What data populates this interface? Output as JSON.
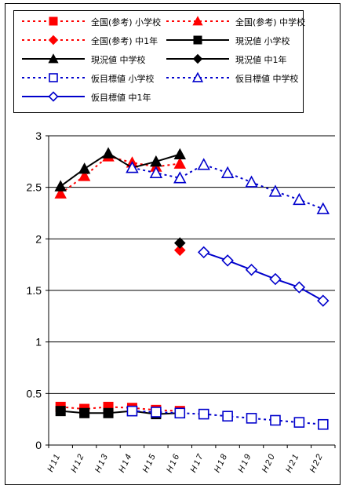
{
  "chart_data": {
    "type": "line",
    "categories": [
      "H11",
      "H12",
      "H13",
      "H14",
      "H15",
      "H16",
      "H17",
      "H18",
      "H19",
      "H20",
      "H21",
      "H22"
    ],
    "ylim": [
      0,
      3
    ],
    "yticks": [
      "0",
      "0.5",
      "1",
      "1.5",
      "2",
      "2.5",
      "3"
    ],
    "grid": true,
    "legend_placement": "top",
    "series": [
      {
        "name": "全国(参考) 小学校",
        "color": "#ff0000",
        "dash": "dotted",
        "marker": "square-filled",
        "values": [
          0.37,
          0.35,
          0.37,
          0.36,
          0.34,
          0.33,
          null,
          null,
          null,
          null,
          null,
          null
        ]
      },
      {
        "name": "全国(参考) 中学校",
        "color": "#ff0000",
        "dash": "dotted",
        "marker": "triangle-filled",
        "values": [
          2.44,
          2.61,
          2.8,
          2.74,
          2.7,
          2.73,
          null,
          null,
          null,
          null,
          null,
          null
        ]
      },
      {
        "name": "全国(参考) 中1年",
        "color": "#ff0000",
        "dash": "dotted",
        "marker": "diamond-filled",
        "values": [
          null,
          null,
          null,
          null,
          null,
          1.89,
          null,
          null,
          null,
          null,
          null,
          null
        ]
      },
      {
        "name": "現況値 小学校",
        "color": "#000000",
        "dash": "solid",
        "marker": "square-filled",
        "values": [
          0.33,
          0.31,
          0.31,
          0.33,
          0.3,
          0.31,
          null,
          null,
          null,
          null,
          null,
          null
        ]
      },
      {
        "name": "現況値 中学校",
        "color": "#000000",
        "dash": "solid",
        "marker": "triangle-filled",
        "values": [
          2.51,
          2.68,
          2.83,
          2.69,
          2.75,
          2.82,
          null,
          null,
          null,
          null,
          null,
          null
        ]
      },
      {
        "name": "現況値 中1年",
        "color": "#000000",
        "dash": "solid",
        "marker": "diamond-filled",
        "values": [
          null,
          null,
          null,
          null,
          null,
          1.96,
          null,
          null,
          null,
          null,
          null,
          null
        ]
      },
      {
        "name": "仮目標値 小学校",
        "color": "#0000cc",
        "dash": "dotted",
        "marker": "square-open",
        "values": [
          null,
          null,
          null,
          0.33,
          0.32,
          0.31,
          0.3,
          0.28,
          0.26,
          0.24,
          0.22,
          0.2
        ]
      },
      {
        "name": "仮目標値 中学校",
        "color": "#0000cc",
        "dash": "dotted",
        "marker": "triangle-open",
        "values": [
          null,
          null,
          null,
          2.69,
          2.64,
          2.59,
          2.72,
          2.64,
          2.55,
          2.46,
          2.38,
          2.29
        ]
      },
      {
        "name": "仮目標値 中1年",
        "color": "#0000cc",
        "dash": "solid",
        "marker": "diamond-open",
        "values": [
          null,
          null,
          null,
          null,
          null,
          null,
          1.87,
          1.79,
          1.7,
          1.61,
          1.53,
          1.4
        ]
      }
    ]
  }
}
